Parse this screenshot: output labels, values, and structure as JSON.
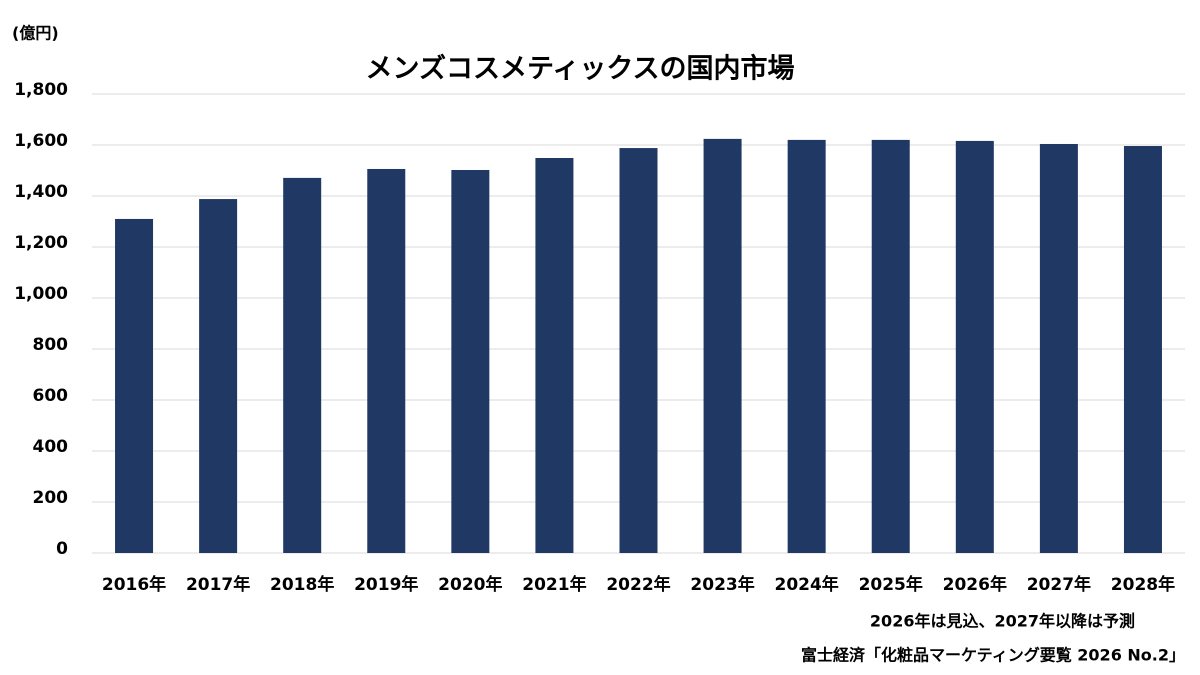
{
  "chart_data": {
    "type": "bar",
    "title": "メンズコスメティックスの国内市場",
    "unit_label": "(億円)",
    "categories": [
      "2016年",
      "2017年",
      "2018年",
      "2019年",
      "2020年",
      "2021年",
      "2022年",
      "2023年",
      "2024年",
      "2025年",
      "2026年",
      "2027年",
      "2028年"
    ],
    "values": [
      1310,
      1388,
      1471,
      1506,
      1502,
      1549,
      1588,
      1624,
      1620,
      1620,
      1616,
      1604,
      1596
    ],
    "color": "#1f3864",
    "ylim": [
      0,
      1800
    ],
    "yticks": [
      0,
      200,
      400,
      600,
      800,
      {
        "value": 1000,
        "label": "1,000"
      },
      {
        "value": 1200,
        "label": "1,200"
      },
      {
        "value": 1400,
        "label": "1,400"
      },
      {
        "value": 1600,
        "label": "1,600"
      },
      {
        "value": 1800,
        "label": "1,800"
      }
    ],
    "grid": true,
    "note": "2026年は見込、2027年以降は予測",
    "source": "富士経済「化粧品マーケティング要覧 2026 No.2」"
  }
}
